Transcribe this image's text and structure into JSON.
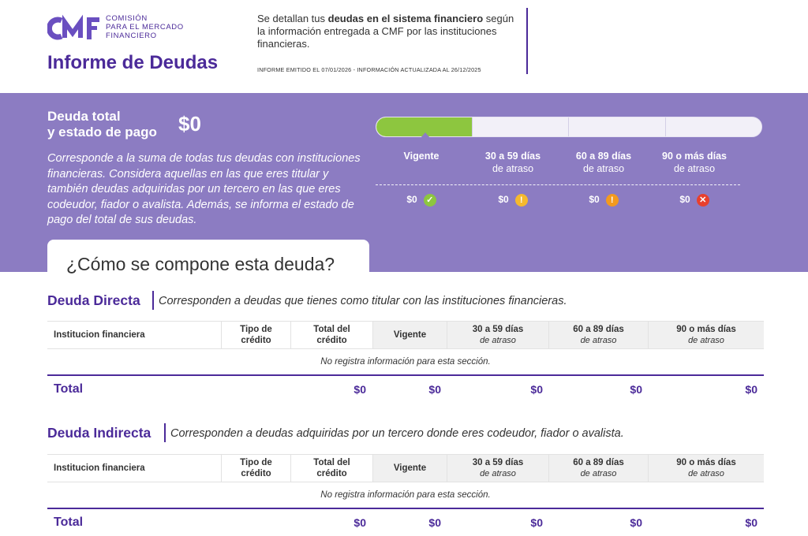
{
  "logo": {
    "lines": [
      "COMISIÓN",
      "PARA EL MERCADO",
      "FINANCIERO"
    ]
  },
  "header": {
    "title": "Informe de Deudas",
    "intro_pre": "Se detallan tus ",
    "intro_bold": "deudas en el sistema financiero",
    "intro_post": " según la información entregada a CMF por las instituciones financieras.",
    "emitted": "INFORME EMITIDO EL 07/01/2026 - INFORMACIÓN ACTUALIZADA AL 26/12/2025"
  },
  "summary": {
    "label_line1": "Deuda total",
    "label_line2": "y estado de pago",
    "amount": "$0",
    "description": "Corresponde a la suma de todas tus deudas con instituciones financieras. Considera aquellas en las que eres titular y también deudas adquiridas por un tercero en las que eres codeudor, fiador o avalista. Además, se informa el estado de pago del total de sus deudas.",
    "status": [
      {
        "title": "Vigente",
        "sub": "",
        "amount": "$0",
        "icon": "check-icon",
        "icon_glyph": "✓",
        "color": "#8dc63f"
      },
      {
        "title": "30 a 59 días",
        "sub": "de atraso",
        "amount": "$0",
        "icon": "warning-icon",
        "icon_glyph": "!",
        "color": "#f5b92e"
      },
      {
        "title": "60 a 89 días",
        "sub": "de atraso",
        "amount": "$0",
        "icon": "warning-icon",
        "icon_glyph": "!",
        "color": "#f39a1e"
      },
      {
        "title": "90 o más días",
        "sub": "de atraso",
        "amount": "$0",
        "icon": "error-icon",
        "icon_glyph": "✕",
        "color": "#e8402d"
      }
    ],
    "compose_title": "¿Cómo se compone esta deuda?"
  },
  "columns": {
    "institution": "Institucion financiera",
    "type_1": "Tipo de",
    "type_2": "crédito",
    "total_1": "Total del",
    "total_2": "crédito",
    "vigente": "Vigente",
    "d30": "30 a 59 días",
    "d60": "60 a 89 días",
    "d90": "90 o más días",
    "late": "de atraso"
  },
  "direct": {
    "title": "Deuda Directa",
    "desc": "Corresponden a deudas que tienes como titular con las instituciones financieras.",
    "empty": "No registra información para esta sección.",
    "total_label": "Total",
    "totals": [
      "$0",
      "$0",
      "$0",
      "$0",
      "$0"
    ]
  },
  "indirect": {
    "title": "Deuda Indirecta",
    "desc": "Corresponden a deudas adquiridas por un tercero donde eres codeudor, fiador o avalista.",
    "empty": "No registra información para esta sección.",
    "total_label": "Total",
    "totals": [
      "$0",
      "$0",
      "$0",
      "$0",
      "$0"
    ]
  },
  "colors": {
    "brand": "#4b2a99",
    "band": "#8c7cc2",
    "vigente": "#8dc63f"
  }
}
